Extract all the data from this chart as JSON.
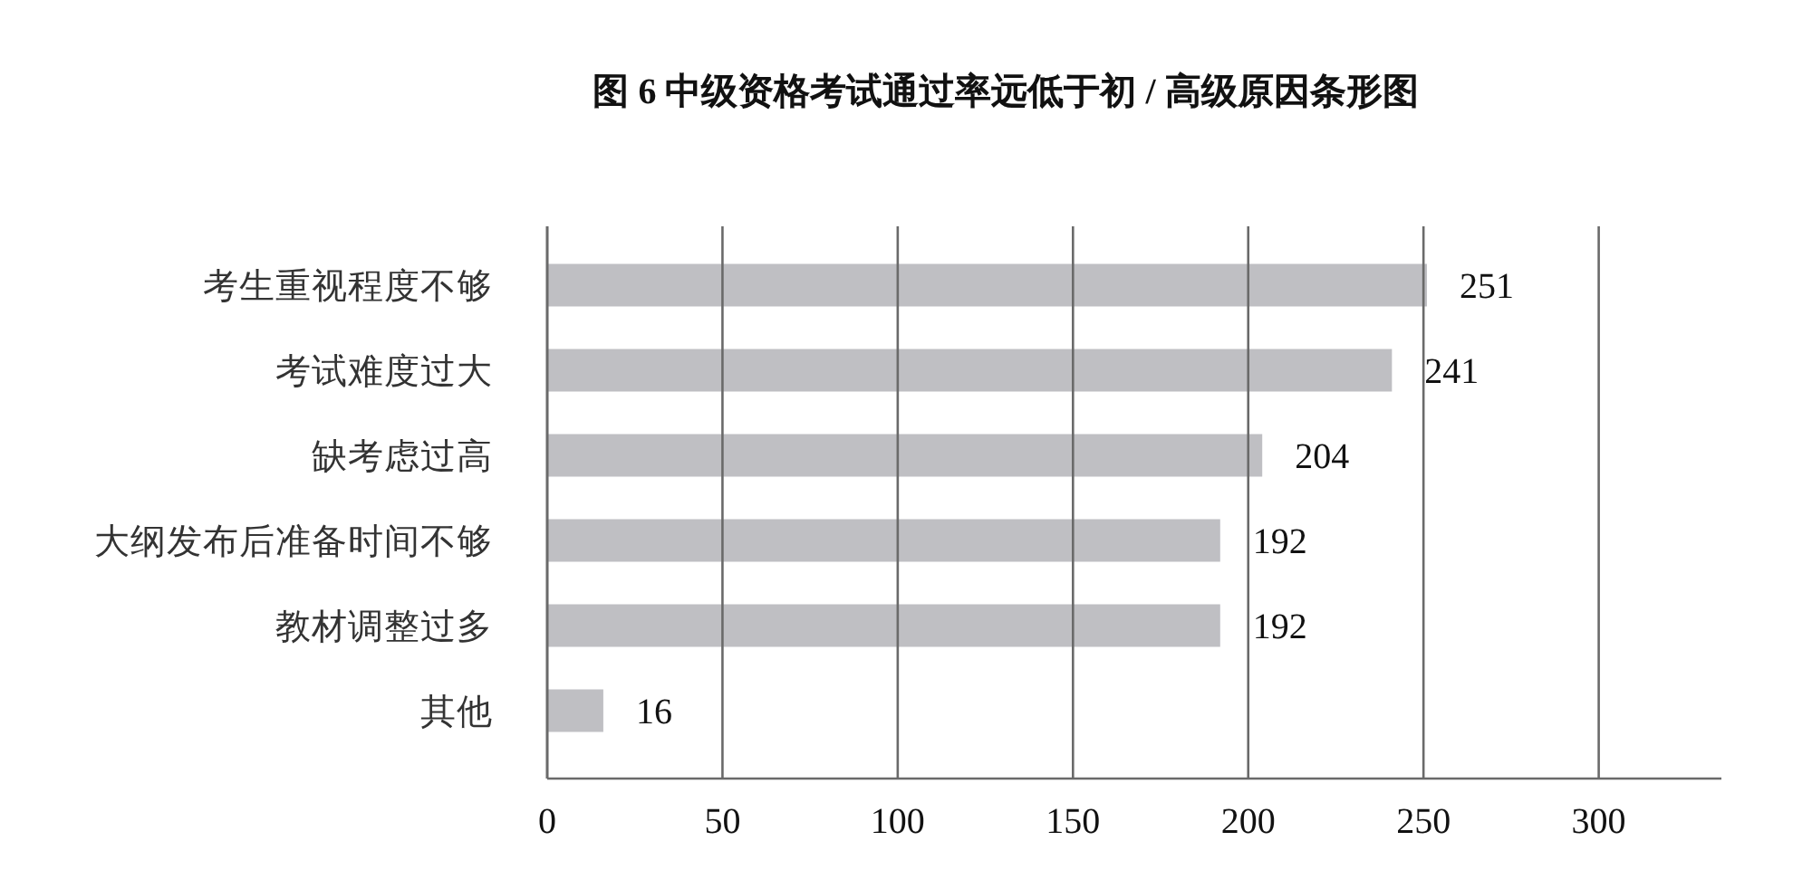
{
  "chart_data": {
    "type": "bar",
    "orientation": "horizontal",
    "title": "图 6 中级资格考试通过率远低于初 / 高级原因条形图",
    "categories": [
      "考生重视程度不够",
      "考试难度过大",
      "缺考虑过高",
      "大纲发布后准备时间不够",
      "教材调整过多",
      "其他"
    ],
    "values": [
      251,
      241,
      204,
      192,
      192,
      16
    ],
    "color": "#bfbfc3",
    "xlim": [
      0,
      335
    ],
    "xticks": [
      0,
      50,
      100,
      150,
      200,
      250,
      300
    ],
    "grid": "x",
    "data_labels": true
  }
}
